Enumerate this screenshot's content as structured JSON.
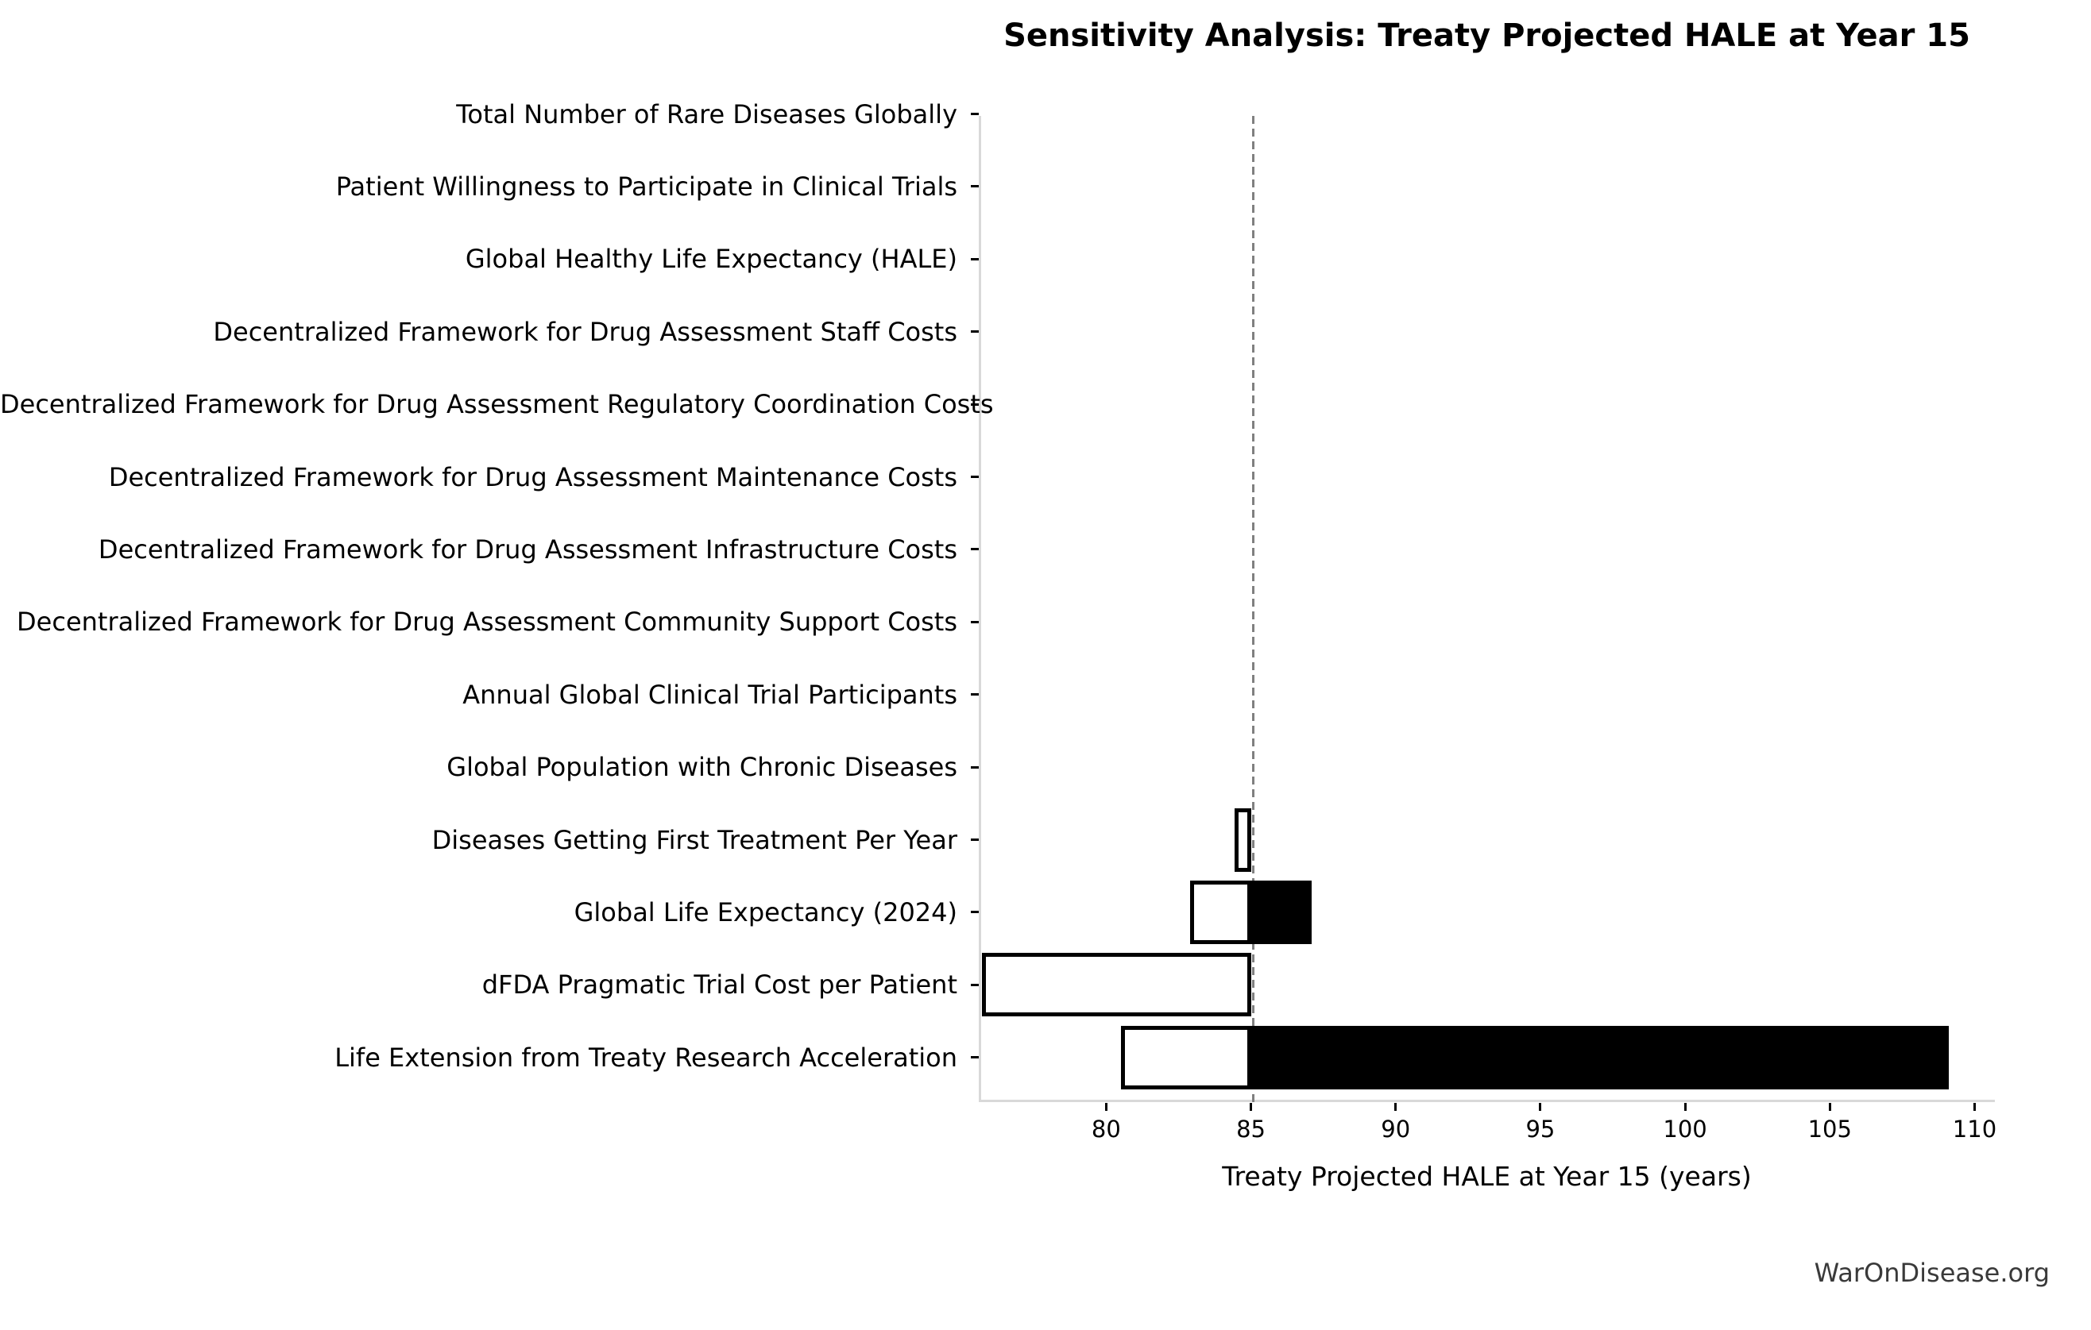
{
  "title": "Sensitivity Analysis: Treaty Projected HALE at Year 15",
  "watermark": "WarOnDisease.org",
  "chart_data": {
    "type": "bar",
    "subtype": "tornado-sensitivity",
    "title": "Sensitivity Analysis: Treaty Projected HALE at Year 15",
    "xlabel": "Treaty Projected HALE at Year 15 (years)",
    "base_value": 85.0,
    "xlim": [
      75.6,
      110.7
    ],
    "xticks": [
      80,
      85,
      90,
      95,
      100,
      105,
      110
    ],
    "grid": false,
    "legend": null,
    "orientation": "horizontal",
    "colors": {
      "low_fill": "#ffffff",
      "high_fill": "#000000",
      "bar_edge": "#000000",
      "baseline": "#7f7f7f",
      "spine": "#d9d9d9",
      "text": "#000000",
      "watermark": "#3a3a3a"
    },
    "parameters": [
      {
        "label": "Total Number of Rare Diseases Globally",
        "low": 85.0,
        "high": 85.0
      },
      {
        "label": "Patient Willingness to Participate in Clinical Trials",
        "low": 85.0,
        "high": 85.0
      },
      {
        "label": "Global Healthy Life Expectancy (HALE)",
        "low": 85.0,
        "high": 85.0
      },
      {
        "label": "Decentralized Framework for Drug Assessment Staff Costs",
        "low": 85.0,
        "high": 85.0
      },
      {
        "label": "Decentralized Framework for Drug Assessment Regulatory Coordination Costs",
        "low": 85.0,
        "high": 85.0
      },
      {
        "label": "Decentralized Framework for Drug Assessment Maintenance Costs",
        "low": 85.0,
        "high": 85.0
      },
      {
        "label": "Decentralized Framework for Drug Assessment Infrastructure Costs",
        "low": 85.0,
        "high": 85.0
      },
      {
        "label": "Decentralized Framework for Drug Assessment Community Support Costs",
        "low": 85.0,
        "high": 85.0
      },
      {
        "label": "Annual Global Clinical Trial Participants",
        "low": 85.0,
        "high": 85.0
      },
      {
        "label": "Global Population with Chronic Diseases",
        "low": 85.0,
        "high": 85.0
      },
      {
        "label": "Diseases Getting First Treatment Per Year",
        "low": 84.45,
        "high": 85.0
      },
      {
        "label": "Global Life Expectancy (2024)",
        "low": 82.9,
        "high": 87.1
      },
      {
        "label": "dFDA Pragmatic Trial Cost per Patient",
        "low": 75.7,
        "high": 85.0
      },
      {
        "label": "Life Extension from Treaty Research Acceleration",
        "low": 80.5,
        "high": 109.1
      }
    ]
  }
}
